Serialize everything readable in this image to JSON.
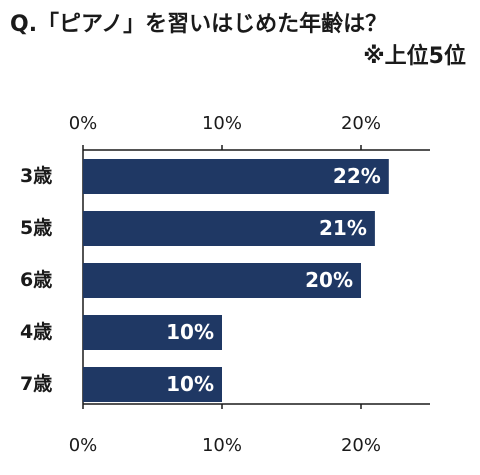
{
  "title_line1": "Q.「ピアノ」を習いはじめた年齢は？",
  "title_line2": "※上位5位",
  "colors": {
    "bar": "#1f3864",
    "bar_label": "#ffffff",
    "axis": "#1a1a1a",
    "tick_label": "#1a1a1a",
    "category_label": "#1a1a1a"
  },
  "chart_data": {
    "type": "bar",
    "orientation": "horizontal",
    "title": "Q.「ピアノ」を習いはじめた年齢は？ ※上位5位",
    "categories": [
      "3歳",
      "5歳",
      "6歳",
      "4歳",
      "7歳"
    ],
    "values": [
      22,
      21,
      20,
      10,
      10
    ],
    "value_labels": [
      "22%",
      "21%",
      "20%",
      "10%",
      "10%"
    ],
    "xlim": [
      0,
      25
    ],
    "xticks": [
      0,
      10,
      20
    ],
    "xtick_labels": [
      "0%",
      "10%",
      "20%"
    ],
    "xlabel": "",
    "ylabel": "",
    "grid": false,
    "tick_labels_top_and_bottom": true
  }
}
